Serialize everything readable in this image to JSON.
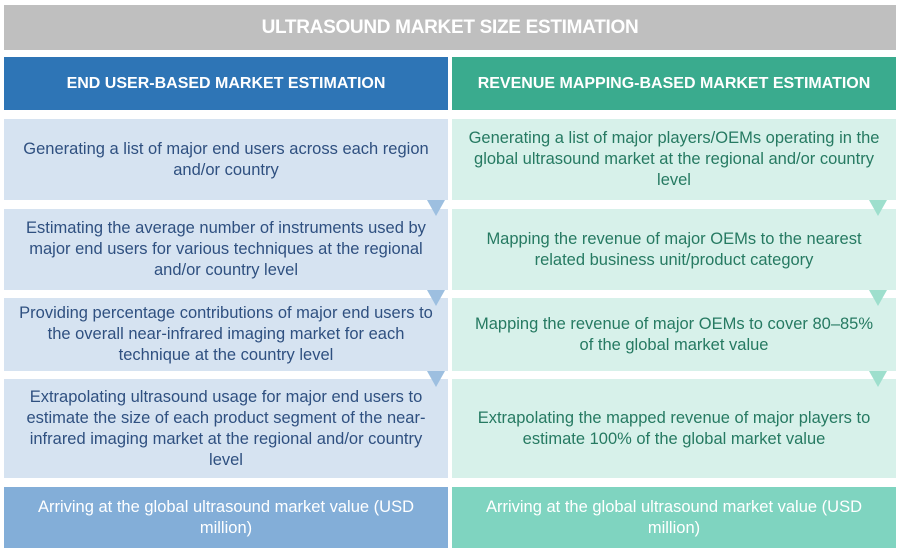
{
  "title": "ULTRASOUND MARKET SIZE ESTIMATION",
  "left": {
    "header": "END USER-BASED MARKET ESTIMATION",
    "steps": [
      "Generating a list of major end users across each region and/or country",
      "Estimating the average number of instruments used by major end users for various techniques at the regional and/or country level",
      "Providing percentage contributions of major end users to the overall near-infrared imaging market for each technique at the country level",
      "Extrapolating ultrasound usage for major end users to estimate the size of each product segment of the near-infrared imaging market at the regional and/or country level"
    ],
    "result": "Arriving at the global ultrasound market value (USD million)"
  },
  "right": {
    "header": "REVENUE MAPPING-BASED MARKET ESTIMATION",
    "steps": [
      "Generating a list of major players/OEMs operating in the global ultrasound market at the regional and/or country level",
      "Mapping the revenue of major OEMs to the nearest related business unit/product category",
      "Mapping the revenue of major OEMs to cover 80–85% of the global market value",
      "Extrapolating the mapped revenue of major players to estimate 100% of the global market value"
    ],
    "result": "Arriving at the global ultrasound market value (USD million)"
  },
  "colors": {
    "title": "#bfbfbf",
    "left_header": "#2e75b6",
    "right_header": "#3aab8e",
    "left_step": "#d6e3f1",
    "right_step": "#d7f1ea",
    "left_result": "#83aed8",
    "right_result": "#7fd4c0"
  }
}
